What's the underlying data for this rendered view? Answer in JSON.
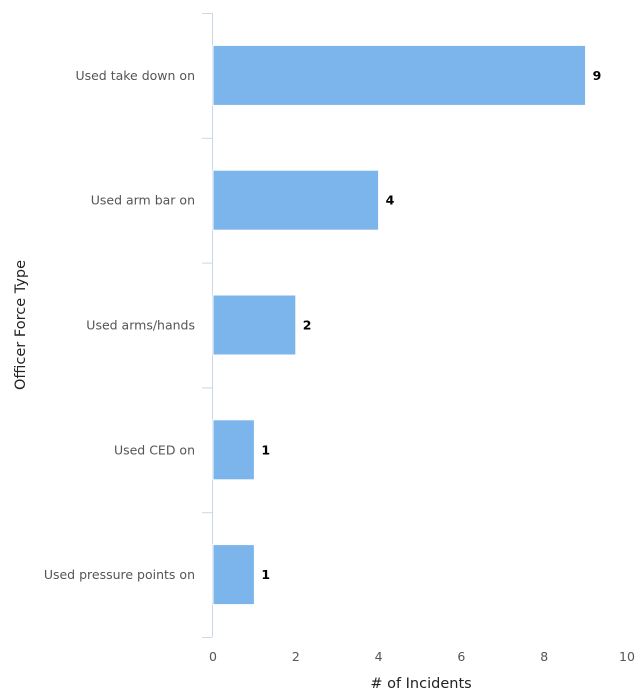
{
  "chart_data": {
    "type": "bar",
    "orientation": "horizontal",
    "categories": [
      "Used take down on",
      "Used arm bar on",
      "Used arms/hands",
      "Used CED on",
      "Used pressure points on"
    ],
    "values": [
      9,
      4,
      2,
      1,
      1
    ],
    "data_labels": [
      "9",
      "4",
      "2",
      "1",
      "1"
    ],
    "xlabel": "# of Incidents",
    "ylabel": "Officer Force Type",
    "xlim": [
      0,
      10
    ],
    "xticks": [
      "0",
      "2",
      "4",
      "6",
      "8",
      "10"
    ],
    "grid": false,
    "legend": "none",
    "colors": {
      "bar": "#7cb5ec",
      "bar_border": "#ffffff",
      "axis": "#ccd6eb"
    }
  }
}
